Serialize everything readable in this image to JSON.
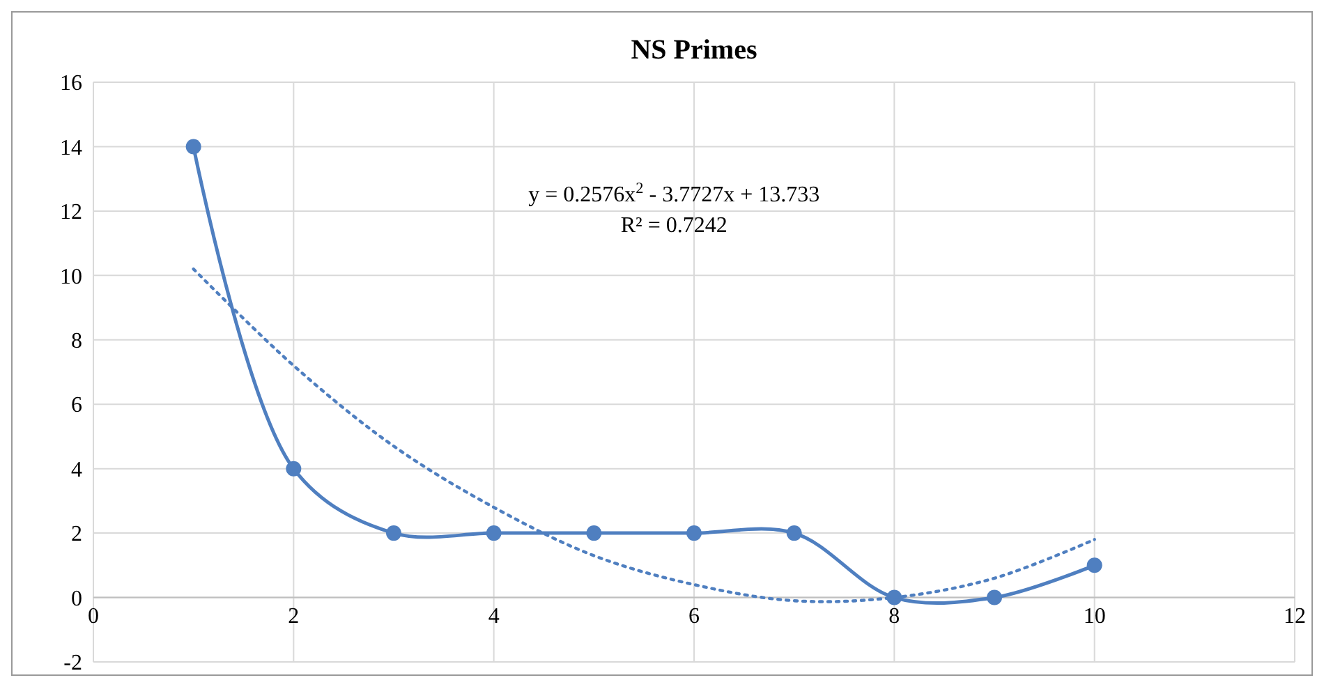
{
  "chart_data": {
    "type": "line",
    "title": "NS Primes",
    "x": [
      1,
      2,
      3,
      4,
      5,
      6,
      7,
      8,
      9,
      10
    ],
    "series": [
      {
        "color": "#4f7fc0",
        "values": [
          14,
          4,
          2,
          2,
          2,
          2,
          2,
          0,
          0,
          1
        ],
        "marker": "circle",
        "line_style": "solid"
      },
      {
        "type": "line",
        "color": "#4f7fc0",
        "x": [
          1,
          2,
          3,
          4,
          5,
          6,
          7,
          8,
          9,
          10
        ],
        "values": [
          10.2,
          7.2,
          4.7,
          2.8,
          1.3,
          0.4,
          -0.1,
          0.0,
          0.6,
          1.8
        ],
        "marker": "none",
        "line_style": "dotted"
      }
    ],
    "xlim": [
      0,
      12
    ],
    "xticks": [
      0,
      2,
      4,
      6,
      8,
      10,
      12
    ],
    "ylim": [
      -2,
      16
    ],
    "yticks": [
      -2,
      0,
      2,
      4,
      6,
      8,
      10,
      12,
      14,
      16
    ],
    "grid": true,
    "annotations": [
      "y = 0.2576x$^{2}$ - 3.7727x + 13.733",
      "R² = 0.7242"
    ]
  }
}
